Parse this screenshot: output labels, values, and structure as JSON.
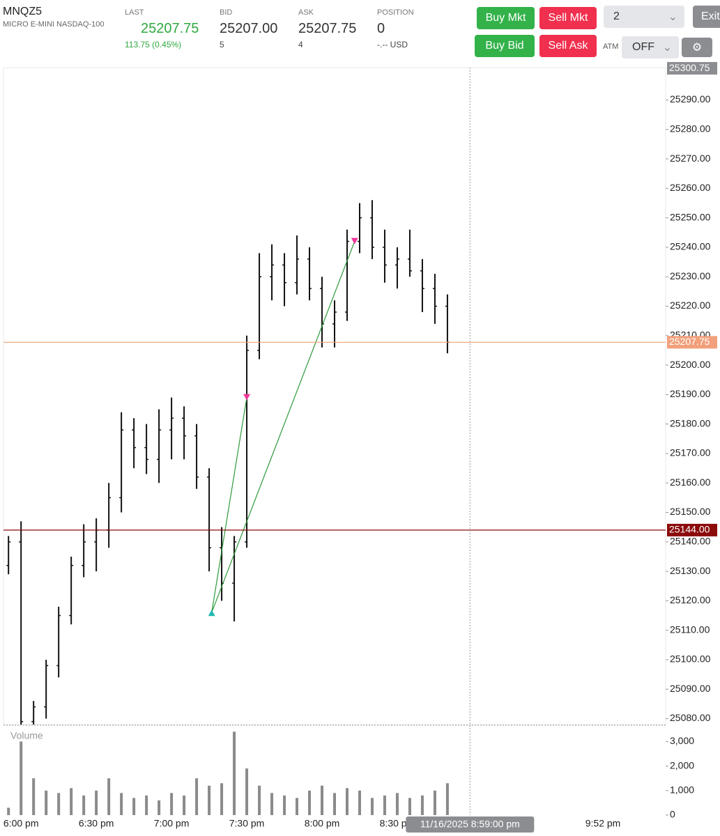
{
  "header": {
    "symbol": "MNQZ5",
    "description": "MICRO E-MINI NASDAQ-100",
    "quotes": [
      {
        "label": "LAST",
        "value": "25207.75",
        "sub": "113.75 (0.45%)"
      },
      {
        "label": "BID",
        "value": "25207.00",
        "sub": "5"
      },
      {
        "label": "ASK",
        "value": "25207.75",
        "sub": "4"
      },
      {
        "label": "POSITION",
        "value": "0",
        "sub": "-.-- USD"
      }
    ],
    "buttons": [
      "Buy Mkt",
      "Sell Mkt",
      "Buy Bid",
      "Sell Ask"
    ],
    "quantity": "2",
    "exit": "Exit",
    "atm_label": "ATM",
    "atm_value": "OFF"
  },
  "chart_data": {
    "type": "ohlc",
    "color": "#111111",
    "x": [
      "5:55 pm",
      "6:00 pm",
      "6:05 pm",
      "6:10 pm",
      "6:15 pm",
      "6:20 pm",
      "6:25 pm",
      "6:30 pm",
      "6:35 pm",
      "6:40 pm",
      "6:45 pm",
      "6:50 pm",
      "6:55 pm",
      "7:00 pm",
      "7:05 pm",
      "7:10 pm",
      "7:15 pm",
      "7:20 pm",
      "7:25 pm",
      "7:30 pm",
      "7:35 pm",
      "7:40 pm",
      "7:45 pm",
      "7:50 pm",
      "7:55 pm",
      "8:00 pm",
      "8:05 pm",
      "8:10 pm",
      "8:15 pm",
      "8:20 pm",
      "8:25 pm",
      "8:30 pm",
      "8:35 pm",
      "8:40 pm",
      "8:45 pm",
      "8:50 pm"
    ],
    "open": [
      25132,
      25140,
      25079,
      25084,
      25098,
      25115,
      25132,
      25140,
      25144,
      25155,
      25178,
      25172,
      25168,
      25178,
      25182,
      25176,
      25162,
      25138,
      25126,
      25140,
      25205,
      25230,
      25234,
      25228,
      25236,
      25226,
      25214,
      25218,
      25242,
      25250,
      25240,
      25234,
      25236,
      25232,
      25226,
      25220
    ],
    "high": [
      25142,
      25147,
      25086,
      25100,
      25118,
      25135,
      25146,
      25148,
      25160,
      25184,
      25182,
      25180,
      25185,
      25189,
      25186,
      25180,
      25165,
      25145,
      25142,
      25210,
      25238,
      25241,
      25238,
      25244,
      25240,
      25230,
      25222,
      25246,
      25255,
      25256,
      25246,
      25240,
      25246,
      25236,
      25231,
      25224
    ],
    "low": [
      25129,
      25076,
      25076,
      25080,
      25094,
      25112,
      25128,
      25130,
      25138,
      25150,
      25165,
      25163,
      25160,
      25168,
      25168,
      25158,
      25130,
      25120,
      25113,
      25138,
      25202,
      25222,
      25220,
      25224,
      25222,
      25206,
      25206,
      25215,
      25238,
      25236,
      25228,
      25226,
      25230,
      25218,
      25214,
      25204
    ],
    "close": [
      25140,
      25079,
      25084,
      25098,
      25115,
      25132,
      25140,
      25144,
      25155,
      25178,
      25172,
      25168,
      25178,
      25182,
      25176,
      25162,
      25138,
      25126,
      25140,
      25205,
      25230,
      25234,
      25228,
      25236,
      25226,
      25214,
      25218,
      25242,
      25250,
      25240,
      25234,
      25236,
      25232,
      25226,
      25220,
      25207.75
    ],
    "xlim": [
      "5:53 pm",
      "10:17 pm"
    ],
    "xticks": [
      "6:00 pm",
      "6:30 pm",
      "7:00 pm",
      "7:30 pm",
      "8:00 pm",
      "8:30 pm",
      "9:52 pm"
    ],
    "ylim": [
      25078,
      25301
    ],
    "yticks": [
      {
        "value": 25080,
        "label": "25080.00"
      },
      {
        "value": 25090,
        "label": "25090.00"
      },
      {
        "value": 25100,
        "label": "25100.00"
      },
      {
        "value": 25110,
        "label": "25110.00"
      },
      {
        "value": 25120,
        "label": "25120.00"
      },
      {
        "value": 25130,
        "label": "25130.00"
      },
      {
        "value": 25140,
        "label": "25140.00"
      },
      {
        "value": 25150,
        "label": "25150.00"
      },
      {
        "value": 25160,
        "label": "25160.00"
      },
      {
        "value": 25170,
        "label": "25170.00"
      },
      {
        "value": 25180,
        "label": "25180.00"
      },
      {
        "value": 25190,
        "label": "25190.00"
      },
      {
        "value": 25200,
        "label": "25200.00"
      },
      {
        "value": 25210,
        "label": "25210.00"
      },
      {
        "value": 25220,
        "label": "25220.00"
      },
      {
        "value": 25230,
        "label": "25230.00"
      },
      {
        "value": 25240,
        "label": "25240.00"
      },
      {
        "value": 25250,
        "label": "25250.00"
      },
      {
        "value": 25260,
        "label": "25260.00"
      },
      {
        "value": 25270,
        "label": "25270.00"
      },
      {
        "value": 25280,
        "label": "25280.00"
      },
      {
        "value": 25290,
        "label": "25290.00"
      }
    ],
    "axis_top_label": {
      "value": 25300.75,
      "label": "25300.75"
    },
    "price_lines": [
      {
        "value": 25207.75,
        "label": "25207.75",
        "color": "#f2a07b"
      },
      {
        "value": 25144,
        "label": "25144.00",
        "color": "#8b0a0a"
      }
    ],
    "markers": [
      {
        "x": "7:16 pm",
        "price": 25116,
        "direction": "up",
        "color": "#22b8b0"
      },
      {
        "x": "7:30 pm",
        "price": 25189,
        "direction": "down",
        "color": "#f0389a"
      },
      {
        "x": "8:13 pm",
        "price": 25242,
        "direction": "down",
        "color": "#f0389a"
      }
    ],
    "link_color": "#2e9a3a",
    "crosshair_label": "11/16/2025 8:59:00 pm",
    "volume": {
      "title": "Volume",
      "color": "#8a8a8a",
      "values": [
        300,
        3000,
        1500,
        1000,
        900,
        1100,
        800,
        1000,
        1500,
        900,
        700,
        800,
        600,
        900,
        800,
        1500,
        1200,
        1300,
        3400,
        1900,
        1200,
        900,
        800,
        700,
        1000,
        1200,
        900,
        1100,
        1000,
        700,
        800,
        900,
        700,
        800,
        1000,
        1300
      ],
      "ylim": [
        0,
        3550
      ],
      "yticks": [
        0,
        {
          "value": 1000,
          "label": "1,000"
        },
        {
          "value": 2000,
          "label": "2,000"
        },
        {
          "value": 3000,
          "label": "3,000"
        }
      ]
    }
  }
}
